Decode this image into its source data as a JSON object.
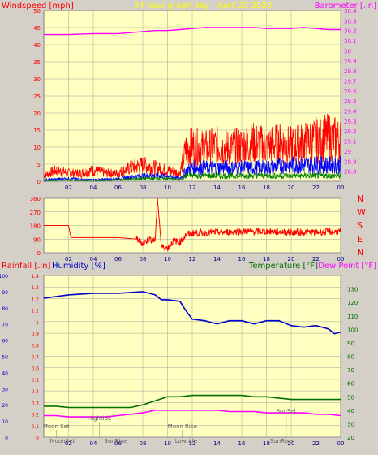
{
  "header": {
    "left_label": "Windspeed [mph]",
    "center_label": "24 hour graph day - April 23 2020",
    "right_label": "Barometer [.in]"
  },
  "colors": {
    "background": "#d4d0c8",
    "plot_bg": "#ffffc0",
    "gust": "#ff0000",
    "avg": "#0000ff",
    "low": "#008000",
    "baro": "#ff00ff",
    "winddir": "#ff0000",
    "humidity": "#0000cc",
    "temperature": "#007000",
    "dewpoint": "#ff00ff",
    "rain": "#ff0000"
  },
  "bottom_header": {
    "rain_label": "Rainfall [.in]",
    "humidity_label": "Humidity [%]",
    "temp_label": "Temperature [°F]",
    "dew_label": "Dew Point [°F]"
  },
  "compass": [
    "N",
    "W",
    "S",
    "E",
    "N"
  ],
  "chart_data": [
    {
      "type": "line",
      "title": "24 hour graph day - April 23 2020",
      "x_ticks": [
        "02",
        "04",
        "06",
        "08",
        "10",
        "12",
        "14",
        "16",
        "18",
        "20",
        "22",
        "00"
      ],
      "y_left_label": "Windspeed [mph]",
      "y_left_range": [
        0,
        50
      ],
      "y_left_ticks": [
        0,
        5,
        10,
        15,
        20,
        25,
        30,
        35,
        40,
        45,
        50
      ],
      "y_right_label": "Barometer [.in]",
      "y_right_range": [
        28.7,
        30.4
      ],
      "y_right_ticks": [
        "28.8",
        "28.9",
        "29",
        "29.1",
        "29.2",
        "29.3",
        "29.4",
        "29.5",
        "29.6",
        "29.7",
        "29.8",
        "29.9",
        "30",
        "30.1",
        "30.2",
        "30.3",
        "30.4"
      ],
      "grid": true,
      "series": [
        {
          "name": "Barometer",
          "axis": "right",
          "x": [
            0,
            2,
            4,
            6,
            8,
            9,
            10,
            11,
            12,
            13,
            14,
            15,
            16,
            17,
            18,
            19,
            20,
            21,
            22,
            23,
            24
          ],
          "y": [
            30.16,
            30.16,
            30.17,
            30.17,
            30.19,
            30.2,
            30.2,
            30.21,
            30.22,
            30.23,
            30.23,
            30.23,
            30.23,
            30.23,
            30.22,
            30.22,
            30.22,
            30.23,
            30.22,
            30.21,
            30.21
          ]
        },
        {
          "name": "Gust",
          "axis": "left",
          "x": [
            0,
            1,
            2,
            3,
            4,
            5,
            6,
            7,
            8,
            9,
            10,
            11,
            11.5,
            12,
            13,
            14,
            15,
            16,
            17,
            18,
            19,
            20,
            21,
            22,
            23,
            24
          ],
          "y": [
            2,
            4,
            3,
            3,
            4,
            3,
            3,
            5,
            6,
            5,
            4,
            3,
            12,
            13,
            12,
            13,
            12,
            13,
            14,
            13,
            14,
            13,
            14,
            15,
            16,
            15
          ]
        },
        {
          "name": "Average",
          "axis": "left",
          "x": [
            0,
            2,
            4,
            6,
            8,
            10,
            11,
            11.5,
            12,
            14,
            16,
            18,
            20,
            22,
            24
          ],
          "y": [
            0.5,
            1,
            0.5,
            1,
            2,
            2,
            1,
            4,
            5,
            5,
            5,
            5,
            6,
            6,
            6
          ]
        },
        {
          "name": "Low",
          "axis": "left",
          "x": [
            0,
            2,
            4,
            6,
            8,
            10,
            11,
            11.5,
            12,
            14,
            16,
            18,
            20,
            22,
            24
          ],
          "y": [
            0,
            0.5,
            0,
            0.5,
            1,
            1,
            0.5,
            2,
            2,
            2,
            2,
            2,
            2,
            2,
            2
          ]
        }
      ]
    },
    {
      "type": "line",
      "x_ticks": [
        "02",
        "04",
        "06",
        "08",
        "10",
        "12",
        "14",
        "16",
        "18",
        "20",
        "22",
        "00"
      ],
      "y_left_range": [
        0,
        360
      ],
      "y_left_ticks": [
        0,
        90,
        180,
        270,
        360
      ],
      "grid": true,
      "series": [
        {
          "name": "Wind direction",
          "x": [
            0,
            2,
            2.2,
            4,
            6,
            7.5,
            8,
            8.5,
            9,
            9.2,
            9.5,
            10,
            10.5,
            11,
            11.5,
            12,
            14,
            16,
            18,
            20,
            22,
            24
          ],
          "y": [
            180,
            180,
            100,
            100,
            100,
            90,
            60,
            90,
            80,
            360,
            40,
            30,
            80,
            70,
            120,
            130,
            135,
            140,
            140,
            135,
            135,
            140
          ]
        }
      ]
    },
    {
      "type": "line",
      "x_ticks": [
        "02",
        "04",
        "06",
        "08",
        "10",
        "12",
        "14",
        "16",
        "18",
        "20",
        "22",
        "00"
      ],
      "y_rain_label": "Rainfall [.in]",
      "y_rain_range": [
        0,
        1.4
      ],
      "y_rain_ticks": [
        "0",
        "0.1",
        "0.2",
        "0.3",
        "0.4",
        "0.5",
        "0.6",
        "0.7",
        "0.8",
        "0.9",
        "1",
        "1.1",
        "1.2",
        "1.3",
        "1.4"
      ],
      "y_hum_label": "Humidity [%]",
      "y_hum_range": [
        0,
        100
      ],
      "y_hum_ticks": [
        0,
        10,
        20,
        30,
        40,
        50,
        60,
        70,
        80,
        90,
        100
      ],
      "y_temp_label": "Temperature [°F]",
      "y_temp_range": [
        20,
        140
      ],
      "y_temp_ticks": [
        20,
        30,
        40,
        50,
        60,
        70,
        80,
        90,
        100,
        110,
        120,
        130
      ],
      "grid": true,
      "annotations": [
        "Moon Set",
        "Hightide",
        "Moon Rise",
        "SunSet",
        "MoonSet",
        "SunRise",
        "Lowtide",
        "SunRise"
      ],
      "series": [
        {
          "name": "Humidity",
          "axis": "humidity",
          "x": [
            0,
            1,
            2,
            4,
            6,
            8,
            9,
            9.5,
            10,
            11,
            11.5,
            12,
            13,
            14,
            15,
            16,
            17,
            18,
            19,
            20,
            21,
            22,
            23,
            23.5,
            24
          ],
          "y": [
            86,
            87,
            88,
            89,
            89,
            90,
            88,
            85,
            85,
            84,
            78,
            73,
            72,
            70,
            72,
            72,
            70,
            72,
            72,
            69,
            68,
            69,
            67,
            64,
            65
          ]
        },
        {
          "name": "Temperature",
          "axis": "temperature",
          "x": [
            0,
            1,
            2,
            3,
            4,
            5,
            6,
            7,
            8,
            9,
            10,
            11,
            12,
            13,
            14,
            15,
            16,
            17,
            18,
            19,
            20,
            21,
            22,
            23,
            24
          ],
          "y": [
            43,
            43,
            42,
            42,
            42,
            42,
            42,
            42,
            44,
            47,
            50,
            50,
            51,
            51,
            51,
            51,
            51,
            50,
            50,
            49,
            48,
            48,
            48,
            48,
            48
          ]
        },
        {
          "name": "Dew Point",
          "axis": "temperature",
          "x": [
            0,
            1,
            2,
            3,
            4,
            5,
            6,
            7,
            8,
            9,
            10,
            11,
            12,
            13,
            14,
            15,
            16,
            17,
            18,
            19,
            20,
            21,
            22,
            23,
            24
          ],
          "y": [
            36,
            36,
            35,
            35,
            35,
            35,
            36,
            37,
            38,
            40,
            40,
            40,
            40,
            40,
            40,
            39,
            39,
            39,
            38,
            38,
            38,
            38,
            37,
            37,
            36
          ]
        }
      ]
    }
  ]
}
